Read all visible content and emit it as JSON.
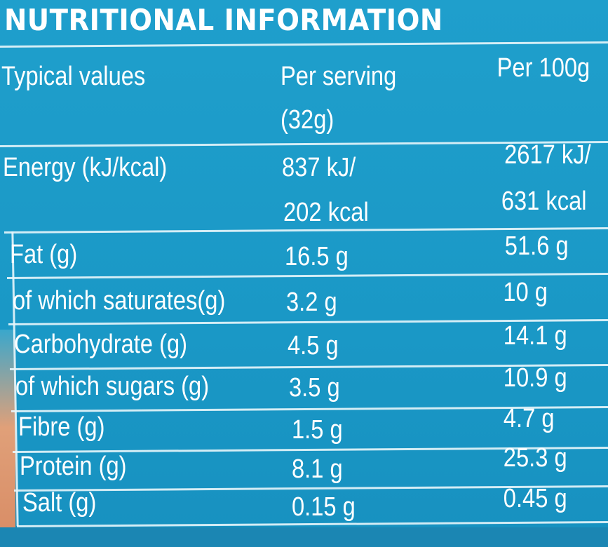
{
  "title": "NUTRITIONAL INFORMATION",
  "header": {
    "label": "Typical values",
    "serving_line1": "Per serving",
    "serving_line2": "(32g)",
    "per100": "Per 100g"
  },
  "rows": [
    {
      "label": "Energy (kJ/kcal)",
      "serving": "837 kJ/",
      "serving2": "202 kcal",
      "per100": "2617 kJ/",
      "per100_2": "631 kcal"
    },
    {
      "label": "Fat (g)",
      "serving": "16.5 g",
      "per100": "51.6 g"
    },
    {
      "label": "of which saturates(g)",
      "serving": "3.2 g",
      "per100": "10 g"
    },
    {
      "label": "Carbohydrate (g)",
      "serving": "4.5 g",
      "per100": "14.1 g"
    },
    {
      "label": "of which sugars (g)",
      "serving": "3.5 g",
      "per100": "10.9 g"
    },
    {
      "label": "Fibre (g)",
      "serving": "1.5 g",
      "per100": "4.7 g"
    },
    {
      "label": "Protein (g)",
      "serving": "8.1 g",
      "per100": "25.3 g"
    },
    {
      "label": "Salt (g)",
      "serving": "0.15 g",
      "per100": "0.45 g"
    }
  ],
  "colors": {
    "panel": "#1d9cc9",
    "text": "#ffffff",
    "rule": "#e8f6fb"
  }
}
